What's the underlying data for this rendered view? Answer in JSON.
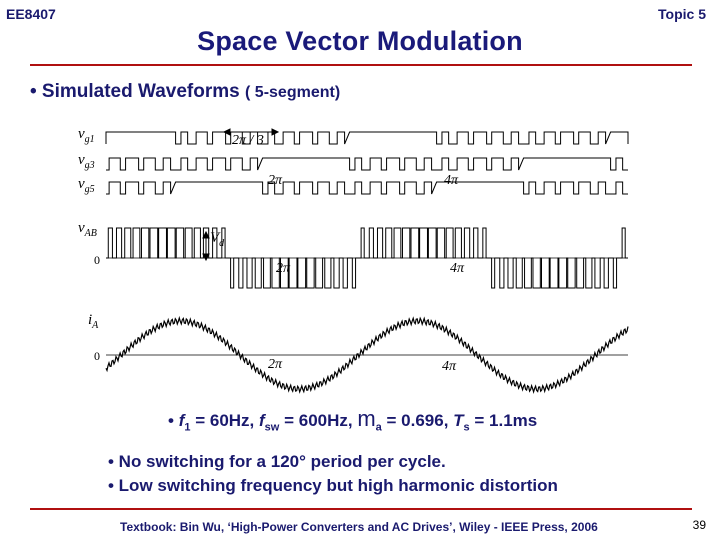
{
  "header": {
    "course": "EE8407",
    "topic": "Topic 5"
  },
  "title": "Space Vector Modulation",
  "bullet_main": {
    "text": "• Simulated Waveforms",
    "suffix": "( 5-segment)"
  },
  "figure": {
    "labels": {
      "vg1": "v",
      "vg1_sub": "g1",
      "vg3": "v",
      "vg3_sub": "g3",
      "vg5": "v",
      "vg5_sub": "g5",
      "vab": "v",
      "vab_sub": "AB",
      "ia": "i",
      "ia_sub": "A",
      "zero_vab": "0",
      "zero_ia": "0",
      "vd": "V",
      "vd_sub": "d",
      "two_pi_over_3": "2π / 3",
      "two_pi": "2π",
      "four_pi": "4π"
    }
  },
  "params": {
    "bullet": "•",
    "f1": "f",
    "f1_sub": "1",
    "f1_val": " = 60Hz, ",
    "fsw": "f",
    "fsw_sub": "sw",
    "fsw_val": " = 600Hz, ",
    "ma": "m",
    "ma_sub": "a",
    "ma_val": " = 0.696, ",
    "ts": "T",
    "ts_sub": "s",
    "ts_val": " = 1.1ms"
  },
  "notes": [
    "• No switching for a 120° period per cycle.",
    "• Low switching frequency but high harmonic distortion"
  ],
  "footer": "Textbook: Bin Wu, ‘High-Power Converters and AC Drives’, Wiley - IEEE Press, 2006",
  "page_number": "39",
  "colors": {
    "title": "#1a1a7a",
    "rule": "#b01010",
    "text": "#1a1a6e"
  }
}
